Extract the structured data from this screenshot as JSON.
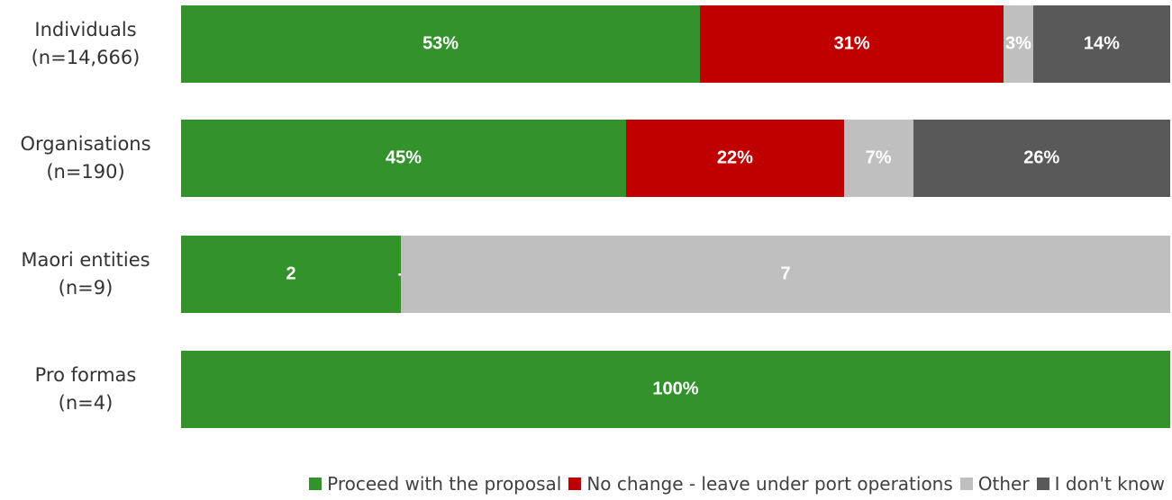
{
  "chart_data": {
    "type": "bar",
    "orientation": "horizontal",
    "stacked": true,
    "normalized": true,
    "categories": [
      {
        "line1": "Individuals",
        "line2": "(n=14,666)"
      },
      {
        "line1": "Organisations",
        "line2": "(n=190)"
      },
      {
        "line1": "Maori entities",
        "line2": "(n=9)"
      },
      {
        "line1": "Pro formas",
        "line2": "(n=4)"
      }
    ],
    "series": [
      {
        "name": "Proceed with the proposal",
        "color": "#33922b",
        "values": [
          53,
          45,
          2,
          100
        ],
        "labels": [
          "53%",
          "45%",
          "2",
          "100%"
        ]
      },
      {
        "name": "No change - leave under port operations",
        "color": "#c00000",
        "values": [
          31,
          22,
          0,
          0
        ],
        "labels": [
          "31%",
          "22%",
          "-",
          ""
        ]
      },
      {
        "name": "Other",
        "color": "#bfbfbf",
        "values": [
          3,
          7,
          7,
          0
        ],
        "labels": [
          "3%",
          "7%",
          "7",
          ""
        ]
      },
      {
        "name": "I don't know",
        "color": "#595959",
        "values": [
          14,
          26,
          0,
          0
        ],
        "labels": [
          "14%",
          "26%",
          "",
          ""
        ]
      }
    ],
    "legend_position": "bottom-right",
    "grid": false
  }
}
